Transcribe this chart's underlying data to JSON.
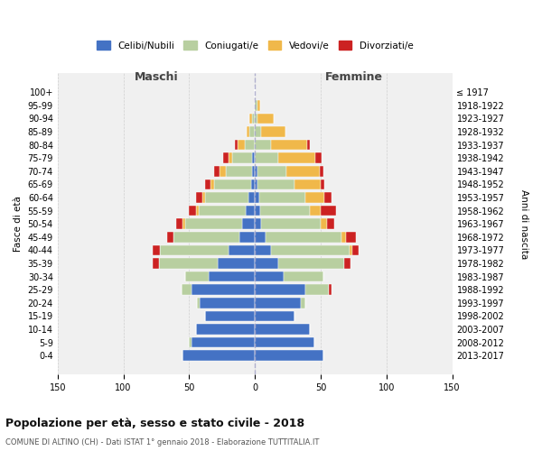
{
  "age_groups": [
    "0-4",
    "5-9",
    "10-14",
    "15-19",
    "20-24",
    "25-29",
    "30-34",
    "35-39",
    "40-44",
    "45-49",
    "50-54",
    "55-59",
    "60-64",
    "65-69",
    "70-74",
    "75-79",
    "80-84",
    "85-89",
    "90-94",
    "95-99",
    "100+"
  ],
  "birth_years": [
    "2013-2017",
    "2008-2012",
    "2003-2007",
    "1998-2002",
    "1993-1997",
    "1988-1992",
    "1983-1987",
    "1978-1982",
    "1973-1977",
    "1968-1972",
    "1963-1967",
    "1958-1962",
    "1953-1957",
    "1948-1952",
    "1943-1947",
    "1938-1942",
    "1933-1937",
    "1928-1932",
    "1923-1927",
    "1918-1922",
    "≤ 1917"
  ],
  "maschi_celibi": [
    55,
    48,
    45,
    38,
    42,
    48,
    35,
    28,
    20,
    12,
    10,
    7,
    5,
    3,
    2,
    2,
    0,
    0,
    0,
    0,
    0
  ],
  "maschi_coniugati": [
    0,
    2,
    0,
    0,
    2,
    8,
    18,
    45,
    52,
    50,
    43,
    36,
    33,
    28,
    20,
    15,
    8,
    4,
    2,
    0,
    0
  ],
  "maschi_vedovi": [
    0,
    0,
    0,
    0,
    0,
    0,
    0,
    0,
    0,
    0,
    2,
    2,
    2,
    3,
    5,
    3,
    5,
    2,
    2,
    0,
    0
  ],
  "maschi_divorziati": [
    0,
    0,
    0,
    0,
    0,
    0,
    0,
    5,
    6,
    5,
    5,
    5,
    5,
    4,
    4,
    4,
    2,
    0,
    0,
    0,
    0
  ],
  "femmine_nubili": [
    52,
    45,
    42,
    30,
    35,
    38,
    22,
    18,
    12,
    8,
    5,
    4,
    3,
    2,
    2,
    0,
    0,
    0,
    0,
    0,
    0
  ],
  "femmine_coniugate": [
    0,
    0,
    0,
    0,
    3,
    18,
    30,
    50,
    60,
    58,
    45,
    38,
    35,
    28,
    22,
    18,
    12,
    5,
    2,
    2,
    0
  ],
  "femmine_vedove": [
    0,
    0,
    0,
    0,
    0,
    0,
    0,
    0,
    2,
    3,
    5,
    8,
    15,
    20,
    25,
    28,
    28,
    18,
    12,
    2,
    0
  ],
  "femmine_divorziate": [
    0,
    0,
    0,
    0,
    0,
    2,
    0,
    5,
    5,
    8,
    5,
    12,
    5,
    3,
    3,
    5,
    2,
    0,
    0,
    0,
    0
  ],
  "colors": {
    "celibi_nubili": "#4472c4",
    "coniugati": "#b8cfa0",
    "vedovi": "#f0b84a",
    "divorziati": "#cc2222"
  },
  "title": "Popolazione per età, sesso e stato civile - 2018",
  "subtitle": "COMUNE DI ALTINO (CH) - Dati ISTAT 1° gennaio 2018 - Elaborazione TUTTITALIA.IT",
  "label_maschi": "Maschi",
  "label_femmine": "Femmine",
  "ylabel_left": "Fasce di età",
  "ylabel_right": "Anni di nascita",
  "xlim": 150,
  "legend_labels": [
    "Celibi/Nubili",
    "Coniugati/e",
    "Vedovi/e",
    "Divorziati/e"
  ],
  "bg_color": "#ffffff",
  "plot_bg": "#f0f0f0",
  "grid_color": "#cccccc"
}
